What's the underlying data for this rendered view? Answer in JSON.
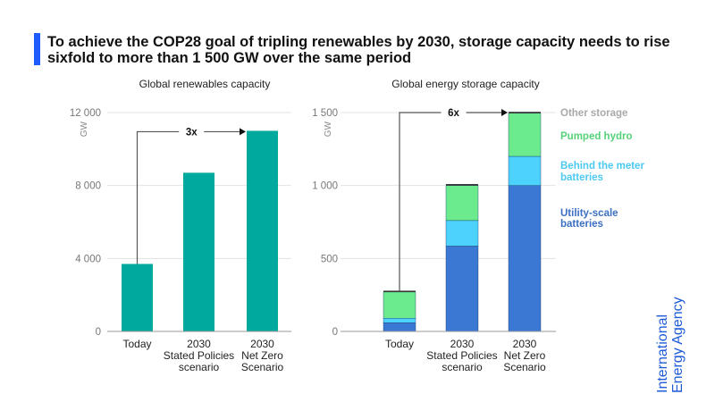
{
  "title": "To achieve the COP28 goal of tripling renewables by 2030, storage capacity needs to rise sixfold to more than 1 500 GW over the same period",
  "logo": {
    "line1": "International",
    "line2": "Energy Agency",
    "color": "#1e5bd8"
  },
  "chart_data": [
    {
      "type": "bar",
      "title": "Global renewables capacity",
      "ylabel": "GW",
      "ylim": [
        0,
        12000
      ],
      "yticks": [
        0,
        4000,
        8000,
        12000
      ],
      "ytick_labels": [
        "0",
        "4 000",
        "8 000",
        "12 000"
      ],
      "categories": [
        [
          "Today"
        ],
        [
          "2030",
          "Stated Policies",
          "scenario"
        ],
        [
          "2030",
          "Net Zero",
          "Scenario"
        ]
      ],
      "values": [
        3700,
        8700,
        11000
      ],
      "color": "#00a99d",
      "grid": true,
      "annotation": {
        "label": "3x",
        "from": 0,
        "to": 2
      }
    },
    {
      "type": "bar",
      "stacked": true,
      "title": "Global energy storage capacity",
      "ylabel": "GW",
      "ylim": [
        0,
        1500
      ],
      "yticks": [
        0,
        500,
        1000,
        1500
      ],
      "ytick_labels": [
        "0",
        "500",
        "1 000",
        "1 500"
      ],
      "categories": [
        [
          "Today"
        ],
        [
          "2030",
          "Stated Policies",
          "scenario"
        ],
        [
          "2030",
          "Net Zero",
          "Scenario"
        ]
      ],
      "series": [
        {
          "name": "Utility-scale batteries",
          "values": [
            60,
            585,
            1000
          ],
          "color": "#3b78d3",
          "legend_color": "#3b6fc4"
        },
        {
          "name": "Behind the meter batteries",
          "values": [
            30,
            175,
            200
          ],
          "color": "#4dd2fd",
          "legend_color": "#4cc9f0"
        },
        {
          "name": "Pumped hydro",
          "values": [
            180,
            240,
            295
          ],
          "color": "#6beb8e",
          "legend_color": "#55d27a"
        },
        {
          "name": "Other storage",
          "values": [
            5,
            10,
            10
          ],
          "color": "#333333",
          "legend_color": "#a9a9a9"
        }
      ],
      "legend": "right",
      "grid": true,
      "annotation": {
        "label": "6x",
        "from": 0,
        "to": 2
      }
    }
  ]
}
